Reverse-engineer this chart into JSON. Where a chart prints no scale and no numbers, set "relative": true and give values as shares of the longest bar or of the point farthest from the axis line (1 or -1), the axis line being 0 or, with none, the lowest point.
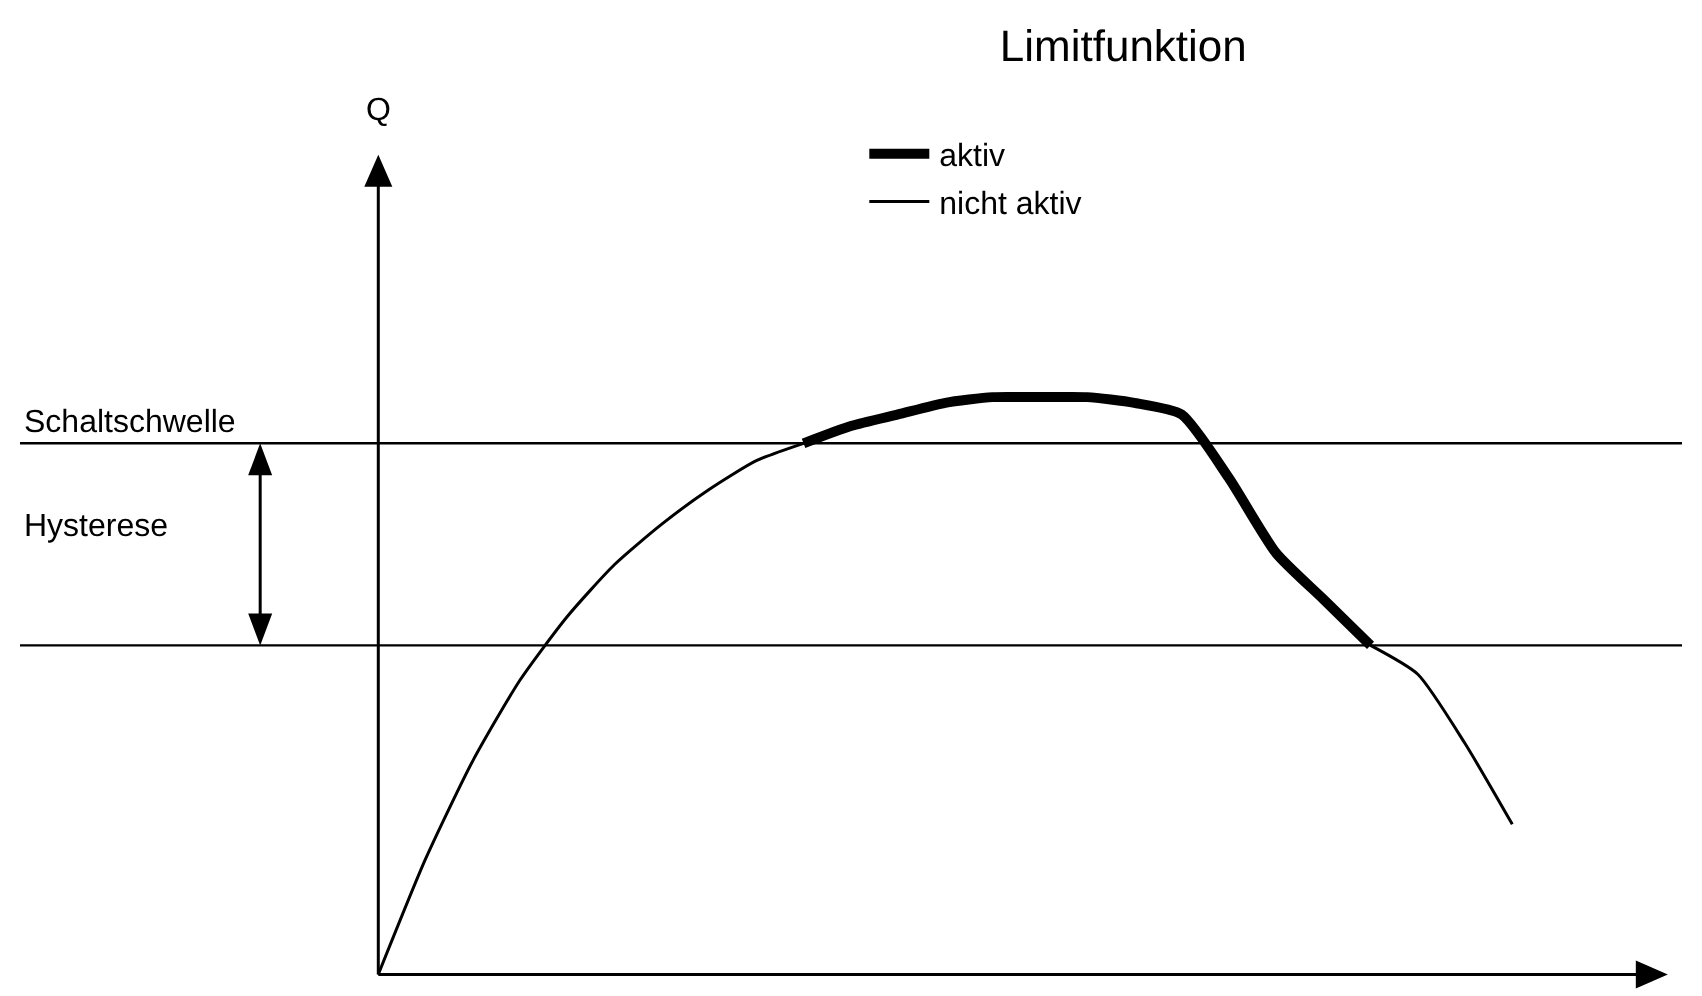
{
  "chart_data": {
    "type": "line",
    "title": "Limitfunktion",
    "relative": true,
    "legend": "top right",
    "grid": false,
    "marker": "none",
    "line_style": "solid",
    "categories": [
      null,
      null,
      null,
      null,
      null,
      null,
      null,
      null,
      null,
      null,
      null,
      null,
      null,
      null,
      null,
      null,
      null,
      null,
      null,
      null,
      null,
      null,
      null,
      null,
      null
    ],
    "series": [
      {
        "name": "aktiv",
        "color": "#000000",
        "values": [
          null,
          null,
          null,
          null,
          null,
          null,
          null,
          null,
          null,
          0.92,
          0.95,
          0.97,
          0.99,
          1.0,
          1,
          1.0,
          0.99,
          0.97,
          0.86,
          0.73,
          0.65,
          0.57,
          null,
          null,
          null
        ]
      },
      {
        "name": "nicht aktiv",
        "color": "#000000",
        "values": [
          0,
          0.2,
          0.37,
          0.51,
          0.62,
          0.71,
          0.78,
          0.84,
          0.89,
          0.92,
          null,
          null,
          null,
          null,
          null,
          null,
          null,
          null,
          null,
          null,
          null,
          0.57,
          0.52,
          0.4,
          0.26
        ]
      }
    ],
    "ref_lines": [
      {
        "axis": "y",
        "value": 0.92,
        "label": "Schaltschwelle",
        "color": "#000000"
      },
      {
        "axis": "y",
        "value": 0.57,
        "label": null,
        "color": "#000000"
      }
    ],
    "annotations": [
      "Hysterese",
      "Q"
    ]
  }
}
